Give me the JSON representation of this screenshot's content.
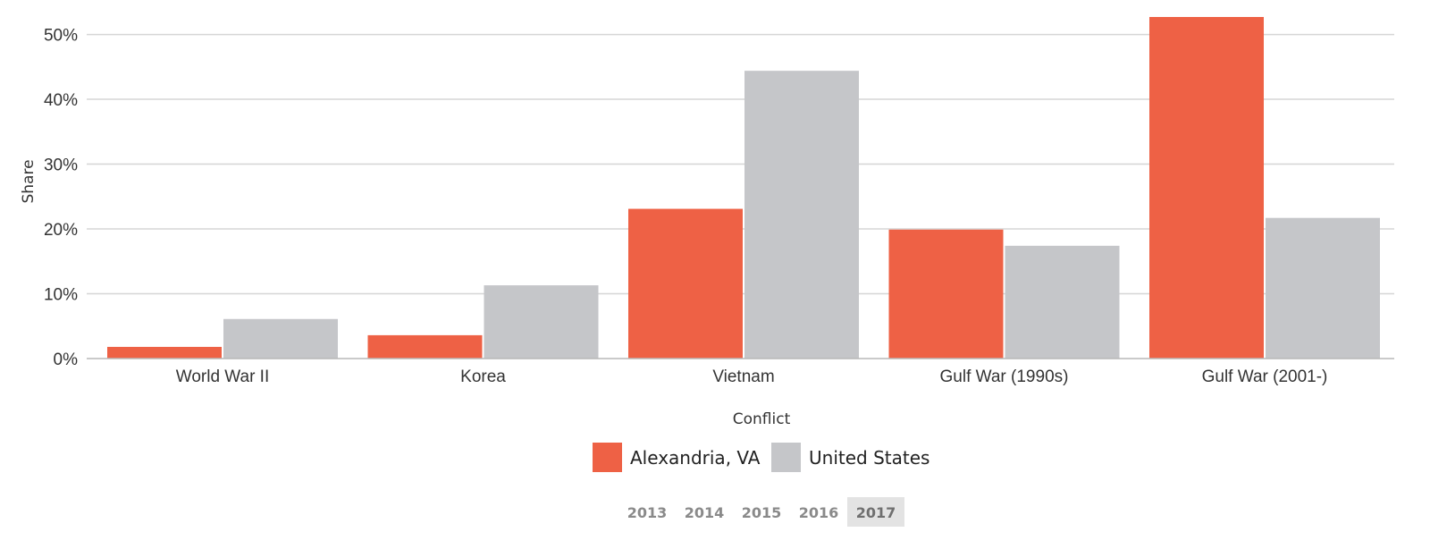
{
  "chart_data": {
    "type": "bar",
    "categories": [
      "World War II",
      "Korea",
      "Vietnam",
      "Gulf War (1990s)",
      "Gulf War (2001-)"
    ],
    "series": [
      {
        "name": "Alexandria, VA",
        "color": "#ee6145",
        "values": [
          1.8,
          3.6,
          23.1,
          19.9,
          52.7
        ]
      },
      {
        "name": "United States",
        "color": "#c5c6c9",
        "values": [
          6.1,
          11.3,
          44.4,
          17.4,
          21.7
        ]
      }
    ],
    "xlabel": "Conflict",
    "ylabel": "Share",
    "ylim": [
      0,
      52.7
    ],
    "yticks": [
      0,
      10,
      20,
      30,
      40,
      50
    ],
    "ytick_labels": [
      "0%",
      "10%",
      "20%",
      "30%",
      "40%",
      "50%"
    ],
    "grid": true,
    "legend_position": "bottom-center"
  },
  "year_selector": {
    "years": [
      "2013",
      "2014",
      "2015",
      "2016",
      "2017"
    ],
    "selected": "2017"
  }
}
